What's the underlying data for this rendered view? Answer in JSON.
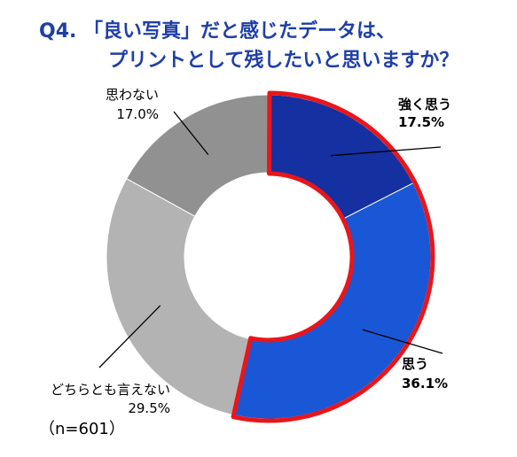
{
  "title": {
    "line1": "Q4. 「良い写真」だと感じたデータは、",
    "line2": "プリントとして残したいと思いますか？"
  },
  "sample_size": "（n=601）",
  "colors": {
    "title": "#1f3fa6",
    "highlight_border": "#e8161b"
  },
  "chart_data": {
    "type": "pie",
    "donut": true,
    "start": "12 o'clock",
    "direction": "clockwise",
    "highlighted": [
      "強く思う",
      "思う"
    ],
    "slices": [
      {
        "label": "強く思う",
        "value": 17.5,
        "display": "17.5%",
        "color": "#1530a0",
        "bold": true
      },
      {
        "label": "思う",
        "value": 36.1,
        "display": "36.1%",
        "color": "#1a57d6",
        "bold": true
      },
      {
        "label": "どちらとも言えない",
        "value": 29.5,
        "display": "29.5%",
        "color": "#b3b3b3",
        "bold": false
      },
      {
        "label": "思わない",
        "value": 17.0,
        "display": "17.0%",
        "color": "#919191",
        "bold": false
      }
    ]
  }
}
